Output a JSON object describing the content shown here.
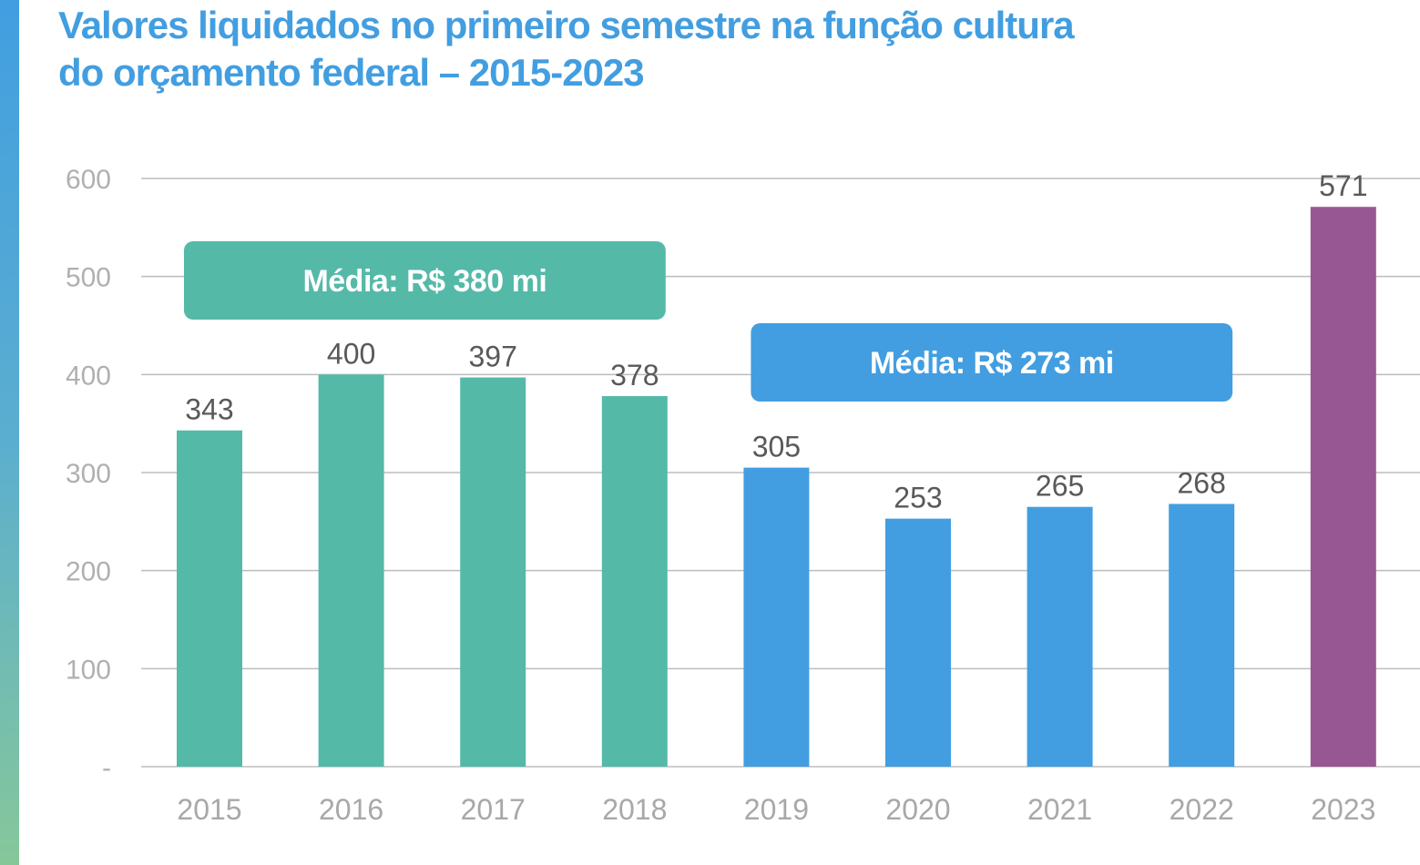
{
  "title_line1": "Valores liquidados no primeiro semestre na função cultura",
  "title_line2": "do orçamento federal – 2015-2023",
  "colors": {
    "accent": "#429ee0",
    "teal": "#55b9a8",
    "blue": "#429ee0",
    "purple": "#975793"
  },
  "chart_data": {
    "type": "bar",
    "title": "Valores liquidados no primeiro semestre na função cultura do orçamento federal – 2015-2023",
    "categories": [
      "2015",
      "2016",
      "2017",
      "2018",
      "2019",
      "2020",
      "2021",
      "2022",
      "2023"
    ],
    "values": [
      343,
      400,
      397,
      378,
      305,
      253,
      265,
      268,
      571
    ],
    "data_labels": [
      "343",
      "400",
      "397",
      "378",
      "305",
      "253",
      "265",
      "268",
      "571"
    ],
    "bar_colors": [
      "#55b9a8",
      "#55b9a8",
      "#55b9a8",
      "#55b9a8",
      "#429ee0",
      "#429ee0",
      "#429ee0",
      "#429ee0",
      "#975793"
    ],
    "ylim": [
      0,
      600
    ],
    "yticks": [
      0,
      100,
      200,
      300,
      400,
      500,
      600
    ],
    "ytick_labels": [
      "-",
      "100",
      "200",
      "300",
      "400",
      "500",
      "600"
    ],
    "grid": true,
    "xlabel": "",
    "ylabel": "",
    "annotations": [
      {
        "text": "Média: R$ 380 mi",
        "from": "2015",
        "to": "2018",
        "value": 380,
        "color": "#55b9a8"
      },
      {
        "text": "Média: R$ 273 mi",
        "from": "2019",
        "to": "2022",
        "value": 273,
        "color": "#429ee0"
      }
    ]
  }
}
